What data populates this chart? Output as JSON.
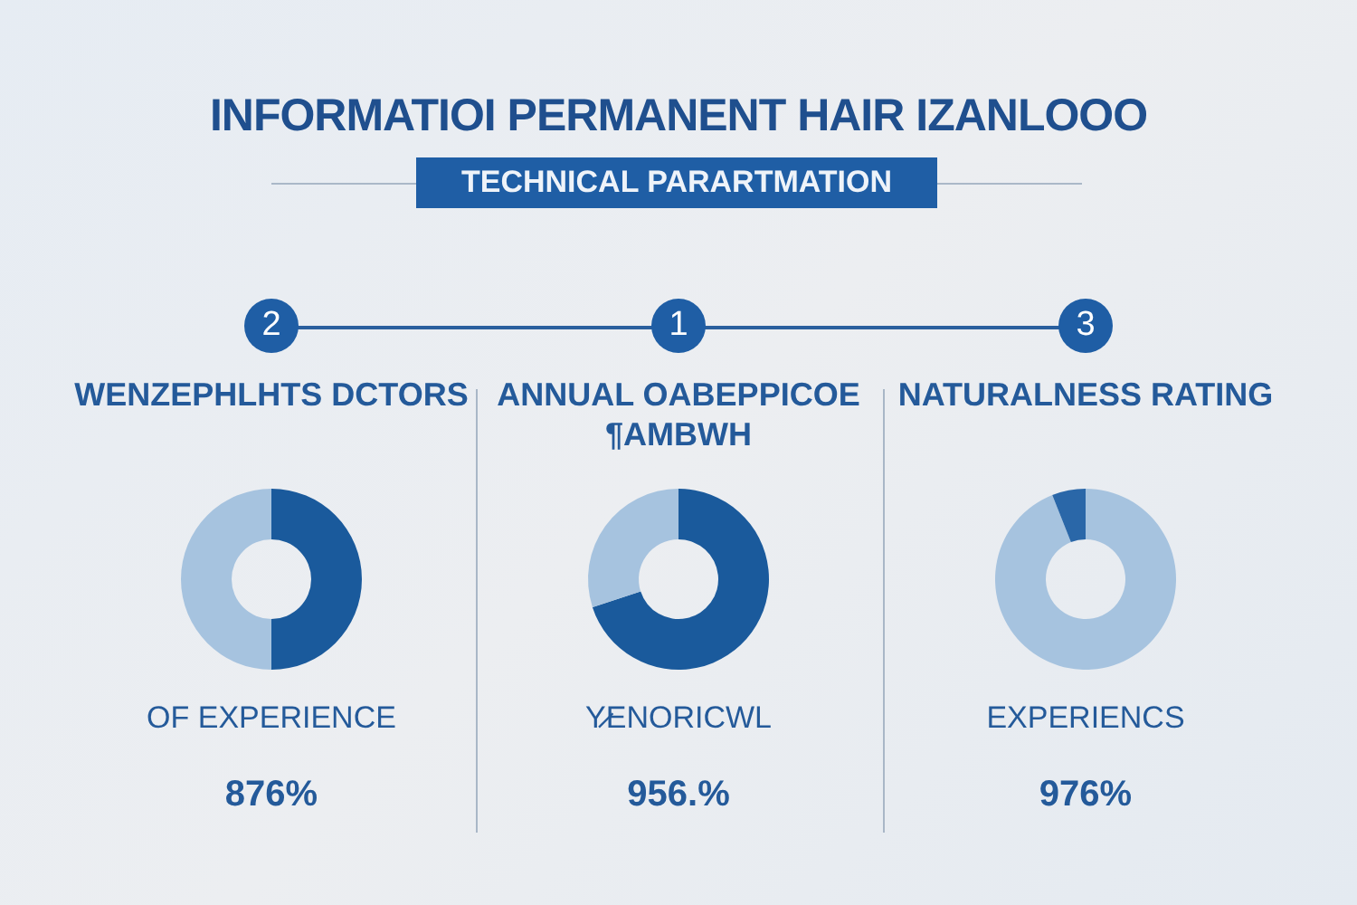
{
  "chart_data": [
    {
      "type": "other",
      "title": "INFORMATIOI PERMANENT HAIR IZANLOOO",
      "subtitle": "TECHNICAL PARARTMATION"
    },
    {
      "type": "donut",
      "title": "WENZEPHLHTS DCTORS",
      "categories": [
        null,
        null
      ],
      "values": [
        50,
        50
      ],
      "colors": [
        "#1a5a9c",
        "#a6c3df"
      ],
      "annotations": [
        "2",
        "OF EXPERIENCE",
        "876%"
      ]
    },
    {
      "type": "donut",
      "title": "ANNUAL OABEPPICOE ¶AMBWH",
      "categories": [
        null,
        null
      ],
      "values": [
        70,
        30
      ],
      "colors": [
        "#1a5a9c",
        "#a6c3df"
      ],
      "annotations": [
        "1",
        "Y̷ENORICWL",
        "956.%"
      ]
    },
    {
      "type": "donut",
      "title": "NATURALNESS RATING",
      "categories": [
        null,
        null
      ],
      "values": [
        94,
        6
      ],
      "colors": [
        "#a6c3df",
        "#2a67a8"
      ],
      "annotations": [
        "3",
        "EXPERIENCS",
        "976%"
      ]
    }
  ]
}
